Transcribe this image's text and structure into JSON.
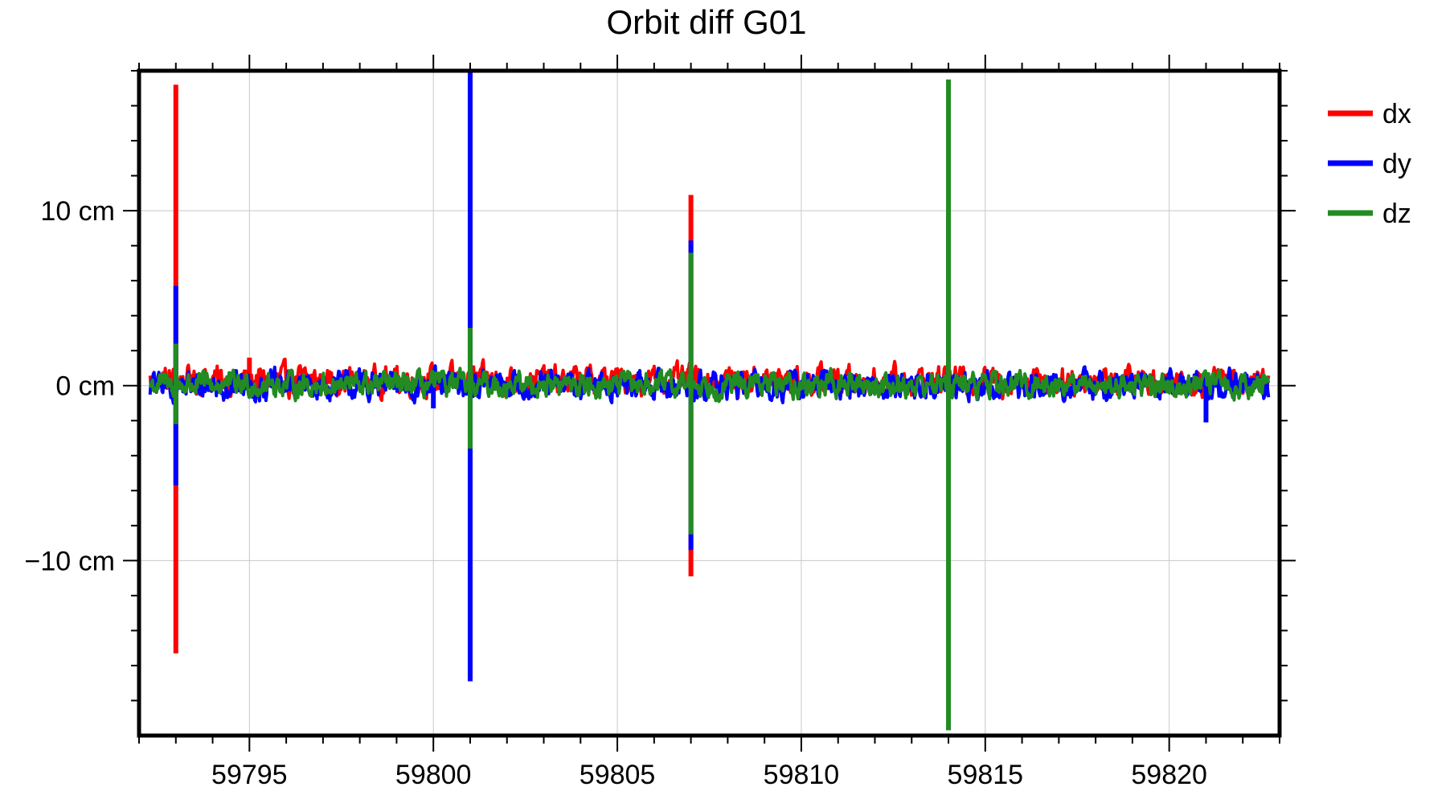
{
  "chart_data": {
    "type": "line",
    "title": "Orbit diff G01",
    "xlabel": "",
    "ylabel": "",
    "xlim": [
      59792,
      59823
    ],
    "ylim": [
      -20,
      18
    ],
    "grid": true,
    "legend_position": "right, outside plot",
    "x_ticks": [
      59795,
      59800,
      59805,
      59810,
      59815,
      59820
    ],
    "x_tick_labels": [
      "59795",
      "59800",
      "59805",
      "59810",
      "59815",
      "59820"
    ],
    "y_ticks": [
      -10,
      0,
      10
    ],
    "y_tick_labels": [
      "−10 cm",
      "0 cm",
      "10 cm"
    ],
    "y_unit": "cm",
    "series": [
      {
        "name": "dx",
        "color": "#ff0000",
        "noise_amplitude": 0.7,
        "noise_offset": 0.3,
        "spikes": [
          {
            "x": 59793.0,
            "ymin": -15.3,
            "ymax": 17.2
          },
          {
            "x": 59807.0,
            "ymin": -10.9,
            "ymax": 10.9
          },
          {
            "x": 59795.0,
            "ymin": 0.0,
            "ymax": 1.6
          }
        ]
      },
      {
        "name": "dy",
        "color": "#0000ff",
        "noise_amplitude": 0.7,
        "noise_offset": 0.0,
        "spikes": [
          {
            "x": 59793.0,
            "ymin": -5.7,
            "ymax": 5.7
          },
          {
            "x": 59801.0,
            "ymin": -16.9,
            "ymax": 18.0
          },
          {
            "x": 59807.0,
            "ymin": -9.4,
            "ymax": 8.3
          },
          {
            "x": 59814.0,
            "ymin": -2.0,
            "ymax": 10.0
          },
          {
            "x": 59800.0,
            "ymin": -1.3,
            "ymax": 0.0
          },
          {
            "x": 59821.0,
            "ymin": -2.1,
            "ymax": 0.0
          }
        ]
      },
      {
        "name": "dz",
        "color": "#228b22",
        "noise_amplitude": 0.6,
        "noise_offset": 0.05,
        "spikes": [
          {
            "x": 59793.0,
            "ymin": -2.2,
            "ymax": 2.4
          },
          {
            "x": 59801.0,
            "ymin": -3.6,
            "ymax": 3.3
          },
          {
            "x": 59807.0,
            "ymin": -8.5,
            "ymax": 7.6
          },
          {
            "x": 59814.0,
            "ymin": -19.7,
            "ymax": 17.5
          }
        ]
      }
    ]
  }
}
